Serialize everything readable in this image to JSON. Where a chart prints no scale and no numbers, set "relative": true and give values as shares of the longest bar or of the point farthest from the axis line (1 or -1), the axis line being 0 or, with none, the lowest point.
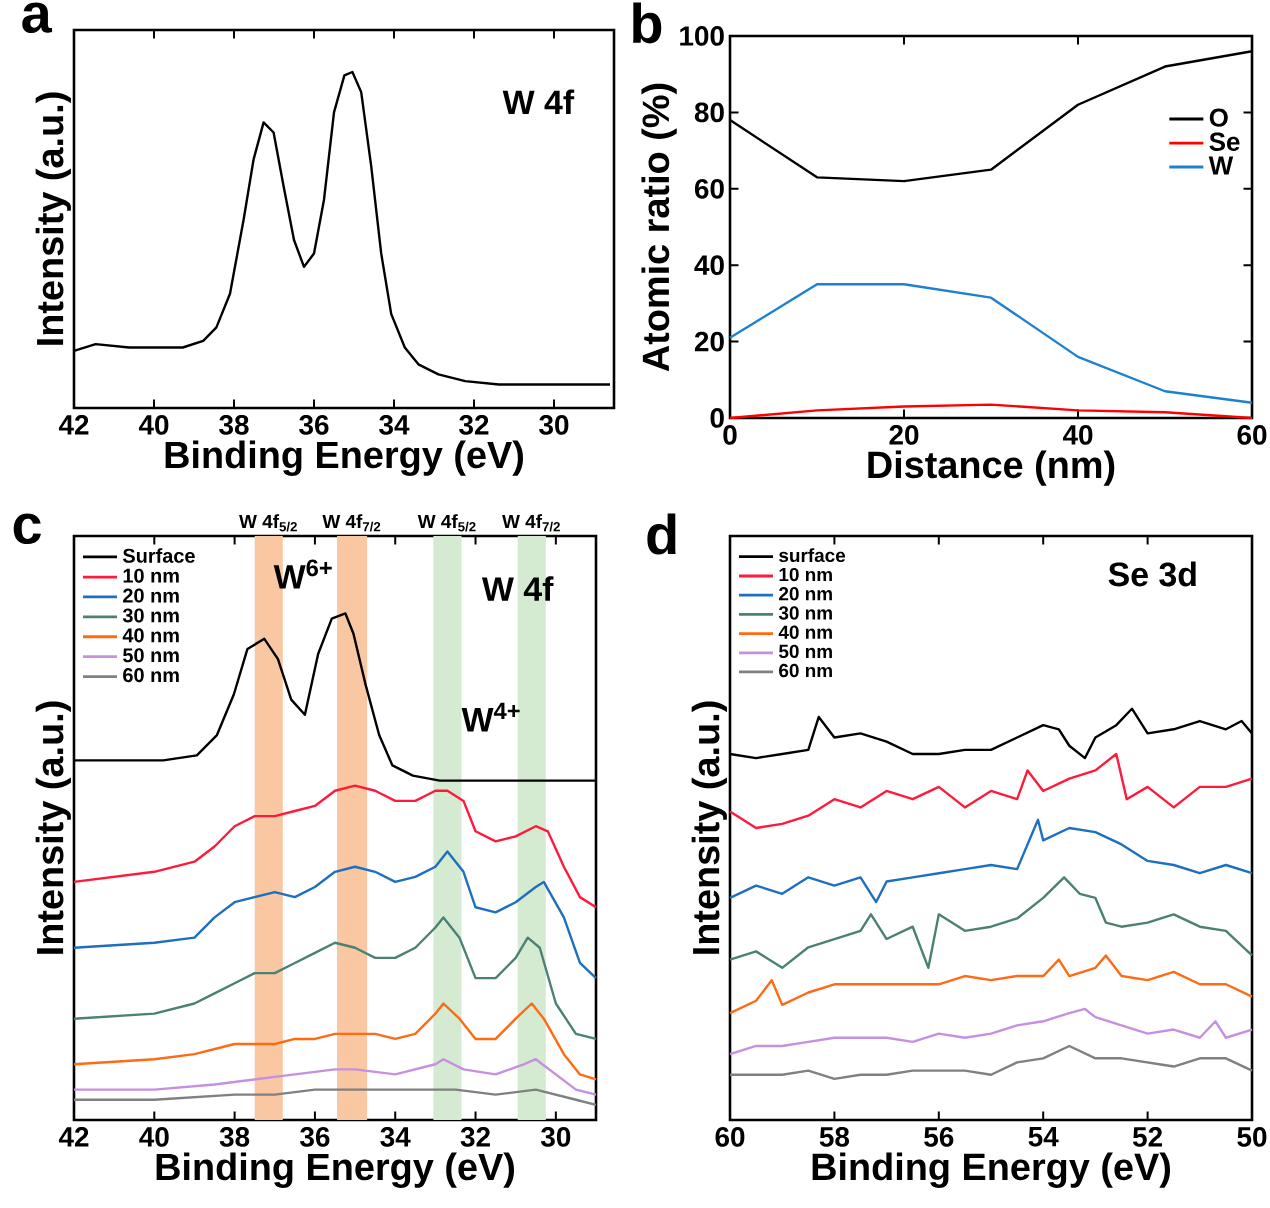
{
  "chart_data": [
    {
      "type": "line",
      "title": "a",
      "xlabel": "Binding Energy (eV)",
      "ylabel": "Intensity (a.u.)",
      "relative": true,
      "xlim": [
        42,
        28.5
      ],
      "xticks": [
        42,
        40,
        38,
        36,
        34,
        32,
        30
      ],
      "annotations": [
        "W 4f"
      ],
      "series": [
        {
          "color": "#000000",
          "x": [
            42.0,
            41.46,
            40.62,
            39.28,
            38.77,
            38.44,
            38.1,
            37.76,
            37.51,
            37.26,
            37.01,
            36.76,
            36.5,
            36.25,
            36.0,
            35.75,
            35.5,
            35.24,
            35.04,
            34.82,
            34.57,
            34.32,
            34.07,
            33.73,
            33.39,
            32.89,
            32.22,
            31.38,
            30.54,
            29.7,
            28.6
          ],
          "values": [
            0.17,
            0.19,
            0.18,
            0.18,
            0.2,
            0.24,
            0.34,
            0.56,
            0.74,
            0.85,
            0.82,
            0.66,
            0.5,
            0.42,
            0.46,
            0.62,
            0.88,
            0.99,
            1.0,
            0.94,
            0.72,
            0.46,
            0.28,
            0.18,
            0.13,
            0.1,
            0.08,
            0.07,
            0.07,
            0.07,
            0.07
          ]
        }
      ]
    },
    {
      "type": "line",
      "title": "b",
      "xlabel": "Distance (nm)",
      "ylabel": "Atomic ratio (%)",
      "xlim": [
        0,
        60
      ],
      "xticks": [
        0,
        20,
        40,
        60
      ],
      "ylim": [
        0,
        100
      ],
      "yticks": [
        0,
        20,
        40,
        60,
        80,
        100
      ],
      "legend": "right",
      "series": [
        {
          "name": "O",
          "color": "#000000",
          "x": [
            0,
            10,
            20,
            30,
            40,
            50,
            60
          ],
          "values": [
            78,
            63,
            62,
            65,
            82,
            92,
            96
          ]
        },
        {
          "name": "Se",
          "color": "#ff0000",
          "x": [
            0,
            10,
            20,
            30,
            40,
            50,
            60
          ],
          "values": [
            0,
            2,
            3,
            3.5,
            2,
            1.5,
            0
          ]
        },
        {
          "name": "W",
          "color": "#1f80d0",
          "x": [
            0,
            10,
            20,
            30,
            40,
            50,
            60
          ],
          "values": [
            21,
            35,
            35,
            31.5,
            16,
            7,
            4
          ]
        }
      ]
    },
    {
      "type": "line",
      "title": "c",
      "xlabel": "Binding Energy (eV)",
      "ylabel": "Intensity (a.u.)",
      "relative": true,
      "xlim": [
        42,
        29
      ],
      "xticks": [
        42,
        40,
        38,
        36,
        34,
        32,
        30
      ],
      "legend": "top left",
      "annotations": [
        "W 4f",
        "W$^{6+}$",
        "W$^{4+}$"
      ],
      "bands": [
        {
          "axis": "x",
          "from": 37.5,
          "to": 36.8,
          "label": "W 4f$_{5/2}$",
          "color": "#f9c8a2"
        },
        {
          "axis": "x",
          "from": 35.45,
          "to": 34.7,
          "label": "W 4f$_{7/2}$",
          "color": "#f9c8a2"
        },
        {
          "axis": "x",
          "from": 33.05,
          "to": 32.35,
          "label": "W 4f$_{5/2}$",
          "color": "#d5ebd1"
        },
        {
          "axis": "x",
          "from": 30.95,
          "to": 30.25,
          "label": "W 4f$_{7/2}$",
          "color": "#d5ebd1"
        }
      ],
      "series": [
        {
          "name": "Surface",
          "color": "#000000",
          "x": [
            42.0,
            39.78,
            38.94,
            38.44,
            38.02,
            37.68,
            37.26,
            36.92,
            36.59,
            36.25,
            35.92,
            35.58,
            35.24,
            35.04,
            34.74,
            34.4,
            34.07,
            33.56,
            32.89,
            32.22,
            29.0
          ],
          "values": [
            0.71,
            0.71,
            0.72,
            0.76,
            0.84,
            0.93,
            0.95,
            0.91,
            0.83,
            0.8,
            0.92,
            0.99,
            1.0,
            0.96,
            0.86,
            0.76,
            0.7,
            0.68,
            0.67,
            0.67,
            0.67
          ]
        },
        {
          "name": "10 nm",
          "color": "#ff1a3c",
          "x": [
            42,
            40,
            39,
            38.5,
            38,
            37.5,
            37,
            36.5,
            36,
            35.5,
            35,
            34.5,
            34,
            33.5,
            33,
            32.7,
            32.3,
            32,
            31.5,
            31,
            30.5,
            30.2,
            29.8,
            29.4,
            29
          ],
          "values": [
            0.47,
            0.49,
            0.51,
            0.54,
            0.58,
            0.6,
            0.6,
            0.61,
            0.62,
            0.65,
            0.66,
            0.65,
            0.63,
            0.63,
            0.65,
            0.65,
            0.63,
            0.57,
            0.55,
            0.56,
            0.58,
            0.57,
            0.5,
            0.44,
            0.42
          ]
        },
        {
          "name": "20 nm",
          "color": "#1f6fbf",
          "x": [
            42,
            40,
            39,
            38.5,
            38,
            37.5,
            37,
            36.5,
            36,
            35.5,
            35,
            34.5,
            34,
            33.5,
            33,
            32.7,
            32.3,
            32,
            31.5,
            31,
            30.5,
            30.3,
            29.8,
            29.4,
            29
          ],
          "values": [
            0.34,
            0.35,
            0.36,
            0.4,
            0.43,
            0.44,
            0.45,
            0.44,
            0.46,
            0.49,
            0.5,
            0.49,
            0.47,
            0.48,
            0.5,
            0.53,
            0.49,
            0.42,
            0.41,
            0.43,
            0.46,
            0.47,
            0.4,
            0.31,
            0.28
          ]
        },
        {
          "name": "30 nm",
          "color": "#4b8174",
          "x": [
            42,
            40,
            39,
            38.5,
            38,
            37.5,
            37,
            36.5,
            36,
            35.5,
            35,
            34.5,
            34,
            33.5,
            33,
            32.8,
            32.4,
            32,
            31.5,
            31,
            30.7,
            30.4,
            30,
            29.5,
            29
          ],
          "values": [
            0.2,
            0.21,
            0.23,
            0.25,
            0.27,
            0.29,
            0.29,
            0.31,
            0.33,
            0.35,
            0.34,
            0.32,
            0.32,
            0.34,
            0.38,
            0.4,
            0.36,
            0.28,
            0.28,
            0.32,
            0.36,
            0.34,
            0.23,
            0.17,
            0.16
          ]
        },
        {
          "name": "40 nm",
          "color": "#ff6a12",
          "x": [
            42,
            40,
            39,
            38.5,
            38,
            37.5,
            37,
            36.5,
            36,
            35.5,
            35,
            34.5,
            34,
            33.5,
            33,
            32.8,
            32.4,
            32,
            31.5,
            31,
            30.6,
            30.3,
            29.8,
            29.4,
            29
          ],
          "values": [
            0.11,
            0.12,
            0.13,
            0.14,
            0.15,
            0.15,
            0.15,
            0.16,
            0.16,
            0.17,
            0.17,
            0.17,
            0.16,
            0.17,
            0.21,
            0.23,
            0.2,
            0.16,
            0.16,
            0.2,
            0.23,
            0.2,
            0.13,
            0.09,
            0.08
          ]
        },
        {
          "name": "50 nm",
          "color": "#c590e0",
          "x": [
            42,
            40,
            38.5,
            37.5,
            36.5,
            35.5,
            35,
            34,
            33,
            32.8,
            32.3,
            31.5,
            30.8,
            30.5,
            30,
            29.5,
            29
          ],
          "values": [
            0.06,
            0.06,
            0.07,
            0.08,
            0.09,
            0.1,
            0.1,
            0.09,
            0.11,
            0.12,
            0.1,
            0.09,
            0.11,
            0.12,
            0.09,
            0.06,
            0.05
          ]
        },
        {
          "name": "60 nm",
          "color": "#808080",
          "x": [
            42,
            40,
            38,
            37,
            36,
            35,
            34,
            33,
            32.5,
            31.5,
            30.5,
            30,
            29.5,
            29
          ],
          "values": [
            0.04,
            0.04,
            0.05,
            0.05,
            0.06,
            0.06,
            0.06,
            0.06,
            0.06,
            0.05,
            0.06,
            0.05,
            0.04,
            0.03
          ]
        }
      ]
    },
    {
      "type": "line",
      "title": "d",
      "xlabel": "Binding Energy (eV)",
      "ylabel": "Intensity (a.u.)",
      "relative": true,
      "xlim": [
        60,
        50
      ],
      "xticks": [
        60,
        58,
        56,
        54,
        52,
        50
      ],
      "legend": "top left",
      "annotations": [
        "Se 3d"
      ],
      "series": [
        {
          "name": "surface",
          "color": "#000000",
          "x": [
            60,
            59.5,
            59,
            58.5,
            58.3,
            58,
            57.5,
            57,
            56.5,
            56,
            55.5,
            55,
            54.5,
            54,
            53.7,
            53.5,
            53.2,
            53,
            52.6,
            52.3,
            52,
            51.5,
            51,
            50.5,
            50.2,
            50
          ],
          "values": [
            0.89,
            0.88,
            0.89,
            0.9,
            0.98,
            0.93,
            0.94,
            0.92,
            0.89,
            0.89,
            0.9,
            0.9,
            0.93,
            0.96,
            0.95,
            0.91,
            0.88,
            0.93,
            0.96,
            1.0,
            0.94,
            0.95,
            0.97,
            0.95,
            0.97,
            0.94
          ]
        },
        {
          "name": "10 nm",
          "color": "#ff1a3c",
          "x": [
            60,
            59.5,
            59,
            58.5,
            58,
            57.5,
            57,
            56.5,
            56,
            55.5,
            55,
            54.5,
            54.3,
            54,
            53.5,
            53,
            52.6,
            52.4,
            52,
            51.5,
            51,
            50.5,
            50
          ],
          "values": [
            0.75,
            0.71,
            0.72,
            0.74,
            0.78,
            0.76,
            0.8,
            0.78,
            0.81,
            0.76,
            0.8,
            0.78,
            0.85,
            0.8,
            0.83,
            0.85,
            0.89,
            0.78,
            0.81,
            0.76,
            0.81,
            0.81,
            0.83
          ]
        },
        {
          "name": "20 nm",
          "color": "#1f6fbf",
          "x": [
            60,
            59.5,
            59,
            58.5,
            58,
            57.5,
            57.2,
            57,
            56.5,
            56,
            55.5,
            55,
            54.5,
            54.1,
            54,
            53.5,
            53,
            52.5,
            52,
            51.5,
            51,
            50.5,
            50
          ],
          "values": [
            0.54,
            0.57,
            0.55,
            0.59,
            0.57,
            0.59,
            0.53,
            0.58,
            0.59,
            0.6,
            0.61,
            0.62,
            0.61,
            0.73,
            0.68,
            0.71,
            0.7,
            0.67,
            0.63,
            0.62,
            0.6,
            0.62,
            0.6
          ]
        },
        {
          "name": "30 nm",
          "color": "#4b8174",
          "x": [
            60,
            59.5,
            59,
            58.5,
            58,
            57.5,
            57.3,
            57,
            56.5,
            56.2,
            56,
            55.5,
            55,
            54.5,
            54,
            53.6,
            53.3,
            53,
            52.8,
            52.5,
            52,
            51.5,
            51,
            50.5,
            50
          ],
          "values": [
            0.39,
            0.41,
            0.37,
            0.42,
            0.44,
            0.46,
            0.5,
            0.44,
            0.47,
            0.37,
            0.5,
            0.46,
            0.47,
            0.49,
            0.54,
            0.59,
            0.55,
            0.54,
            0.48,
            0.47,
            0.48,
            0.5,
            0.47,
            0.46,
            0.4
          ]
        },
        {
          "name": "40 nm",
          "color": "#ff6a12",
          "x": [
            60,
            59.5,
            59.2,
            59,
            58.5,
            58,
            57.5,
            57,
            56.5,
            56,
            55.5,
            55,
            54.5,
            54,
            53.7,
            53.5,
            53,
            52.8,
            52.5,
            52,
            51.5,
            51,
            50.5,
            50
          ],
          "values": [
            0.26,
            0.29,
            0.34,
            0.28,
            0.31,
            0.33,
            0.33,
            0.33,
            0.33,
            0.33,
            0.35,
            0.34,
            0.35,
            0.35,
            0.39,
            0.35,
            0.37,
            0.4,
            0.35,
            0.34,
            0.36,
            0.33,
            0.33,
            0.3
          ]
        },
        {
          "name": "50 nm",
          "color": "#c590e0",
          "x": [
            60,
            59.5,
            59,
            58.5,
            58,
            57.5,
            57,
            56.5,
            56,
            55.5,
            55,
            54.5,
            54,
            53.5,
            53.2,
            53,
            52.5,
            52,
            51.5,
            51,
            50.7,
            50.5,
            50
          ],
          "values": [
            0.16,
            0.18,
            0.18,
            0.19,
            0.2,
            0.2,
            0.2,
            0.19,
            0.21,
            0.2,
            0.21,
            0.23,
            0.24,
            0.26,
            0.27,
            0.25,
            0.23,
            0.21,
            0.22,
            0.2,
            0.24,
            0.2,
            0.22
          ]
        },
        {
          "name": "60 nm",
          "color": "#808080",
          "x": [
            60,
            59.5,
            59,
            58.5,
            58,
            57.5,
            57,
            56.5,
            56,
            55.5,
            55,
            54.5,
            54,
            53.5,
            53,
            52.5,
            52,
            51.5,
            51,
            50.5,
            50
          ],
          "values": [
            0.11,
            0.11,
            0.11,
            0.12,
            0.1,
            0.11,
            0.11,
            0.12,
            0.12,
            0.12,
            0.11,
            0.14,
            0.15,
            0.18,
            0.15,
            0.15,
            0.14,
            0.13,
            0.15,
            0.15,
            0.12
          ]
        }
      ]
    }
  ]
}
